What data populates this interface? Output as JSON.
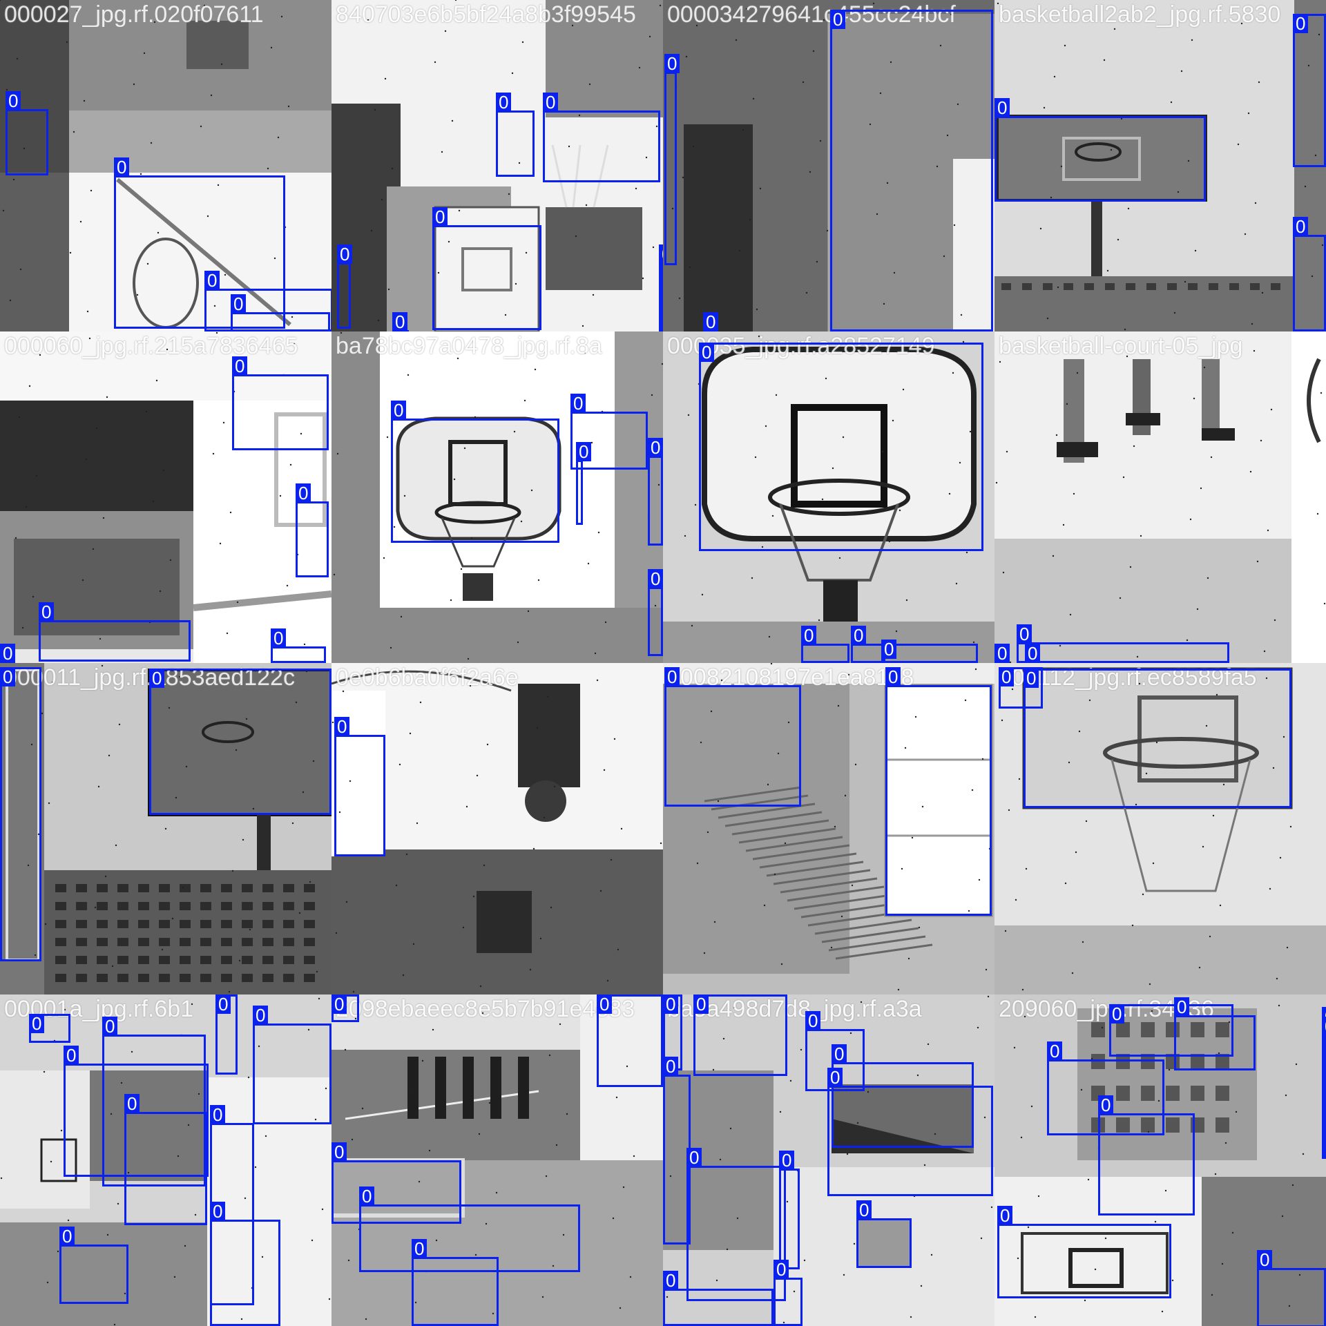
{
  "colors": {
    "box": "#0b22ee",
    "label_text": "#ffffff"
  },
  "tiles": [
    {
      "label": "000027_jpg.rf.020f07611",
      "scene": "chair-street"
    },
    {
      "label": "840703e6b5bf24a8b3f99545",
      "scene": "hoop-house"
    },
    {
      "label": "000034279641c455cc24bcf",
      "scene": "corner-wall"
    },
    {
      "label": "basketball2ab2_jpg.rf.5830",
      "scene": "backboard-building"
    },
    {
      "label": "000060_jpg.rf.215a7836465",
      "scene": "reflection-court"
    },
    {
      "label": "ba78bc97a0478_jpg.rf.8a",
      "scene": "hoop-product"
    },
    {
      "label": "000035_jpg.rf.a28527149",
      "scene": "england-backboard"
    },
    {
      "label": "basketball-court-05_jpg",
      "scene": "players-legs"
    },
    {
      "label": "000011_jpg.rf.a853aed122c",
      "scene": "backboard-apartments"
    },
    {
      "label": "0e0b6ba0f6f2a6e",
      "scene": "player-upside-down"
    },
    {
      "label": "00082108197e1ea81c8",
      "scene": "stairs-hoop"
    },
    {
      "label": "000112_jpg.rf.ec8589fa5",
      "scene": "net-closeup"
    },
    {
      "label": "00001a_jpg.rf.6b1",
      "scene": "collage-a"
    },
    {
      "label": "2098ebaeec8e5b7b91e4e83",
      "scene": "court-players"
    },
    {
      "label": "ba8a498d7d8_jpg.rf.a3a",
      "scene": "collage-b"
    },
    {
      "label": "209060_jpg.rf.34b36",
      "scene": "collage-c"
    }
  ],
  "class_label": "0"
}
